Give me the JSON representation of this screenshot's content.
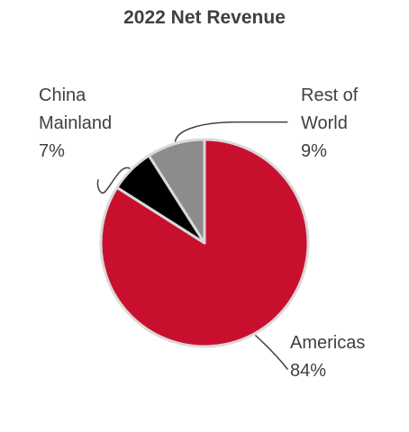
{
  "chart_data": {
    "type": "pie",
    "title": "2022 Net Revenue",
    "slices": [
      {
        "label_lines": [
          "Americas"
        ],
        "value": 84,
        "value_label": "84%",
        "color": "#C8102E"
      },
      {
        "label_lines": [
          "China",
          "Mainland"
        ],
        "value": 7,
        "value_label": "7%",
        "color": "#000000"
      },
      {
        "label_lines": [
          "Rest of",
          "World"
        ],
        "value": 9,
        "value_label": "9%",
        "color": "#8C8C8C"
      }
    ],
    "slice_edge_color": "#D9D9D9",
    "leader_line_color": "#404040",
    "text_color": "#404040",
    "legend": "none"
  }
}
